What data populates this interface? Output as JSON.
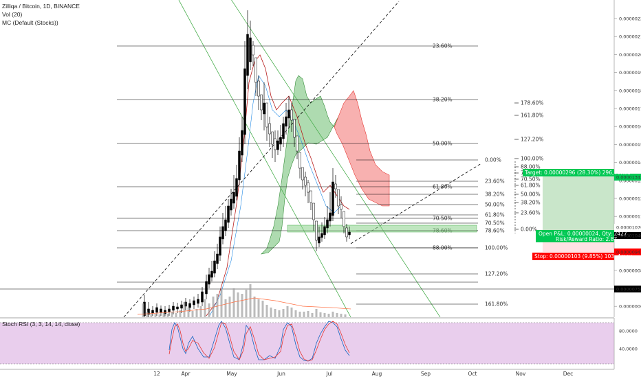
{
  "header": {
    "title": "Zilliqa / Bitcoin, 1D, BINANCE",
    "vol_label": "Vol (20)",
    "mc_label": "MC (Default (Stocks))",
    "stoch_label": "Stoch RSI (3, 3, 14, 14, close)"
  },
  "colors": {
    "candle": "#000000",
    "fib_line": "#000000",
    "trend_green": "#4caf50",
    "trend_dash": "#000000",
    "cloud_green": "#4caf50",
    "cloud_red": "#ef5350",
    "lag_line": "#b71c1c",
    "zone": "#8bd18b",
    "stoch_bg": "#e1bee7",
    "stoch_k": "#1565c0",
    "stoch_d": "#e53935",
    "target_green": "#00c853",
    "stop_red": "#ff0000"
  },
  "chart_data": {
    "type": "candlestick",
    "symbol": "Zilliqa / Bitcoin",
    "timeframe": "1D",
    "exchange": "BINANCE",
    "price_axis": {
      "ticks": [
        "0.00000220",
        "0.00000210",
        "0.00000200",
        "0.00000190",
        "0.00000180",
        "0.00000170",
        "0.00000160",
        "0.00000150",
        "0.00000140",
        "0.00000130",
        "0.00000120",
        "0.00000110",
        "0.00000100",
        "0.00000090",
        "0.00000080",
        "0.00000070",
        "0.00000060"
      ],
      "highlight_labels": [
        "0.00001342",
        "0.00001070",
        "0.00001046",
        "0.00000943",
        "0.00000750"
      ]
    },
    "time_axis": [
      "12",
      "Apr",
      "May",
      "Jun",
      "Jul",
      "Aug",
      "Sep",
      "Oct",
      "Nov",
      "Dec"
    ],
    "fib_retracement_left": {
      "levels": [
        "23.60%",
        "38.20%",
        "50.00%",
        "61.80%",
        "70.50%",
        "78.60%",
        "88.00%"
      ]
    },
    "fib_retracement_mid": {
      "levels": [
        "0.00%",
        "23.60%",
        "38.20%",
        "50.00%",
        "61.80%",
        "70.50%",
        "78.60%",
        "100.00%",
        "127.20%",
        "161.80%"
      ]
    },
    "fib_extension_right_upper": {
      "levels": [
        "178.60%",
        "161.80%",
        "127.20%",
        "100.00%",
        "88.00%",
        "78.60%",
        "70.50%",
        "61.80%",
        "50.00%",
        "38.20%",
        "23.60%",
        "0.00%"
      ]
    },
    "long_position": {
      "target_text": "Target: 0.00000296 (28.30%) 296, Amou",
      "open_text": "Open P&L: 0.00000024, Qty: 2427",
      "ratio_text": "Risk/Reward Ratio: 2.87",
      "stop_text": "Stop: 0.00000103 (9.85%) 103, Amou"
    },
    "stoch_rsi": {
      "ticks": [
        "80.0000",
        "40.0000"
      ]
    }
  }
}
